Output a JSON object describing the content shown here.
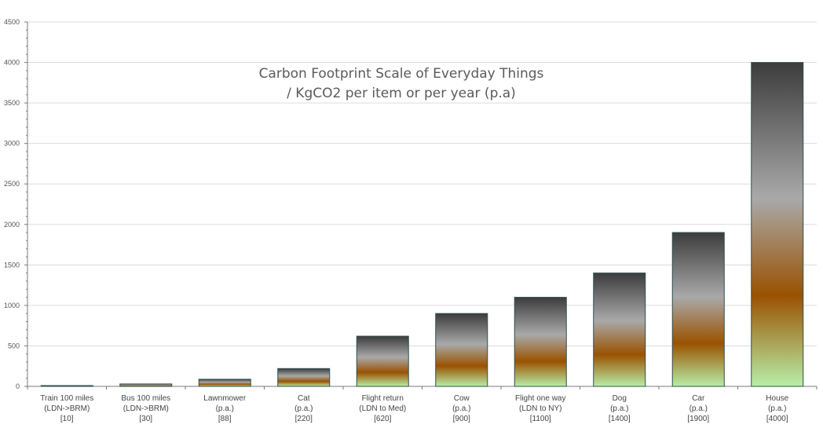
{
  "chart_data": {
    "type": "bar",
    "title_lines": [
      "Carbon Footprint Scale of Everyday Things",
      "/ KgCO2 per item or per year (p.a)"
    ],
    "xlabel": "",
    "ylabel": "",
    "ylim": [
      0,
      4500
    ],
    "yticks": [
      0,
      500,
      1000,
      1500,
      2000,
      2500,
      3000,
      3500,
      4000,
      4500
    ],
    "grid": true,
    "categories": [
      [
        "Train 100 miles",
        "(LDN->BRM)",
        "[10]"
      ],
      [
        "Bus 100 miles",
        "(LDN->BRM)",
        "[30]"
      ],
      [
        "Lawnmower",
        "(p.a.)",
        "[88]"
      ],
      [
        "Cat",
        "(p.a.)",
        "[220]"
      ],
      [
        "Flight return",
        "(LDN to Med)",
        "[620]"
      ],
      [
        "Cow",
        "(p.a.)",
        "[900]"
      ],
      [
        "Flight one way",
        "(LDN to NY)",
        "[1100]"
      ],
      [
        "Dog",
        "(p.a.)",
        "[1400]"
      ],
      [
        "Car",
        "(p.a.)",
        "[1900]"
      ],
      [
        "House",
        "(p.a.)",
        "[4000]"
      ]
    ],
    "values": [
      10,
      30,
      88,
      220,
      620,
      900,
      1100,
      1400,
      1900,
      4000
    ],
    "colors": {
      "bar_top": "#3c3c3c",
      "bar_mid": "#a9a9a9",
      "bar_brown": "#9a5200",
      "bar_bottom": "#b8eea8",
      "bar_stroke": "#2f4f4f",
      "grid": "#dcdcdc",
      "axis": "#7a7a7a"
    }
  }
}
